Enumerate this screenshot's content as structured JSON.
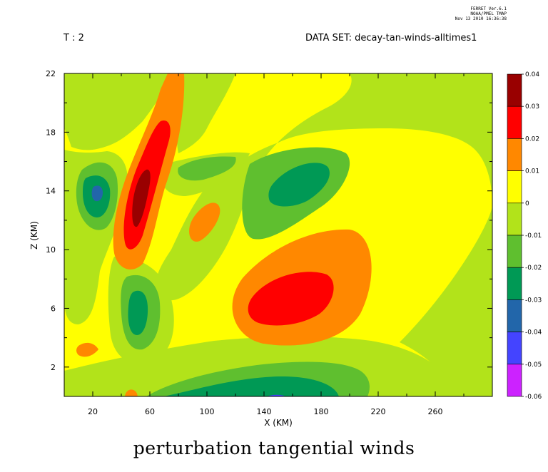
{
  "header": {
    "time_label": "T : 2",
    "dataset_label": "DATA SET: decay-tan-winds-alltimes1",
    "ferret_lines": [
      "FERRET  Ver.6.1",
      "NOAA/PMEL TMAP",
      "Nov 13 2010 16:36:38"
    ]
  },
  "caption": "perturbation tangential winds",
  "chart_data": {
    "type": "heatmap",
    "title": "perturbation tangential winds",
    "xlabel": "X (KM)",
    "ylabel": "Z (KM)",
    "xlim": [
      0,
      300
    ],
    "ylim": [
      0,
      22
    ],
    "x_ticks": [
      20,
      60,
      100,
      140,
      180,
      220,
      260
    ],
    "y_ticks": [
      2,
      6,
      10,
      14,
      18,
      22
    ],
    "legend_position": "right",
    "colorbar": {
      "levels": [
        "0.04",
        "0.03",
        "0.02",
        "0.01",
        "0",
        "-0.01",
        "-0.02",
        "-0.03",
        "-0.04",
        "-0.05",
        "-0.06"
      ],
      "colors": [
        "#990000",
        "#ff0000",
        "#ff8800",
        "#ffff00",
        "#b2e31a",
        "#5fbf2f",
        "#009955",
        "#2266aa",
        "#4444ff",
        "#cc22ff"
      ]
    },
    "background_value_range": [
      0,
      0.01
    ],
    "features": [
      {
        "x": 50,
        "z": 14,
        "peak": 0.035,
        "color": "#990000"
      },
      {
        "x": 50,
        "z": 13,
        "peak": 0.025,
        "color": "#ff0000"
      },
      {
        "x": 160,
        "z": 6.8,
        "peak": 0.025,
        "color": "#ff0000"
      },
      {
        "x": 150,
        "z": 14.5,
        "peak": -0.025,
        "color": "#009955"
      },
      {
        "x": 20,
        "z": 14,
        "peak": -0.035,
        "color": "#2266aa"
      },
      {
        "x": 50,
        "z": 6,
        "peak": -0.025,
        "color": "#009955"
      },
      {
        "x": 145,
        "z": 0.3,
        "peak": -0.025,
        "color": "#009955"
      },
      {
        "x": 95,
        "z": 12,
        "peak": 0.015,
        "color": "#ff8800"
      },
      {
        "x": 10,
        "z": 3.4,
        "peak": 0.015,
        "color": "#ff8800"
      }
    ]
  }
}
